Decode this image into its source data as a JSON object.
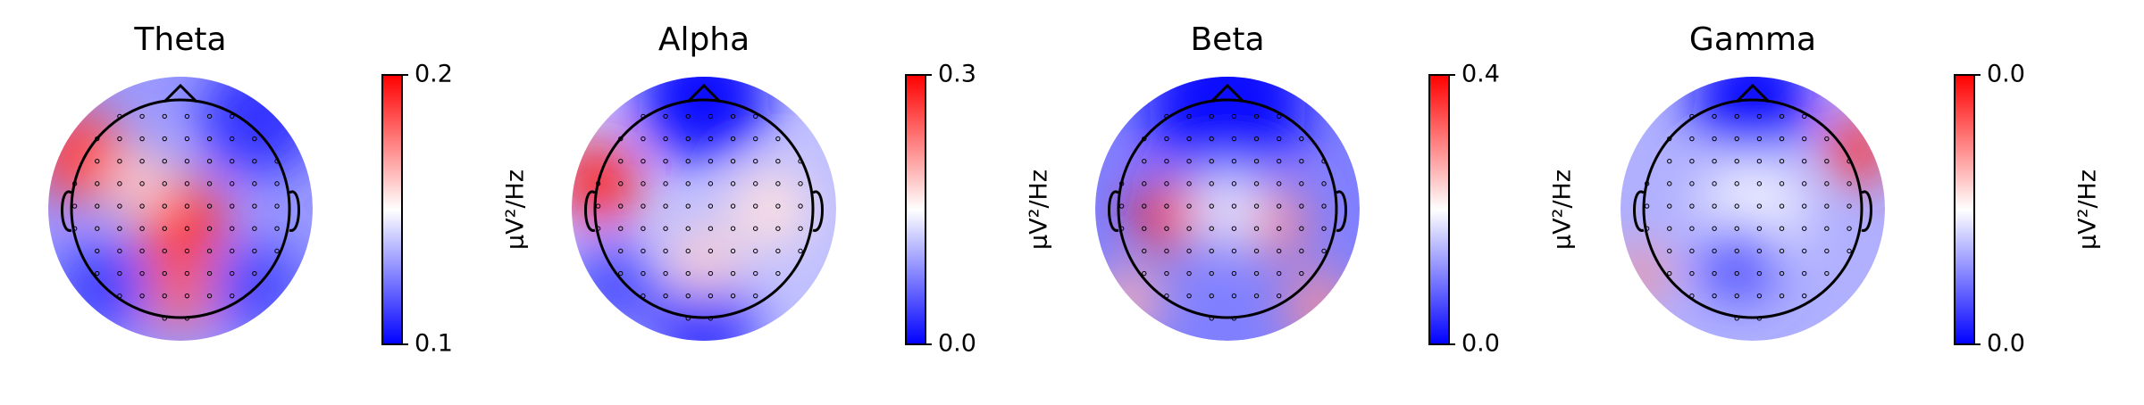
{
  "chart_data": [
    {
      "type": "topomap",
      "title": "Theta",
      "colorbar_label": "µV²/Hz",
      "colormap": [
        "#0000ff",
        "#ffffff",
        "#ff0000"
      ],
      "ylim": [
        0.1,
        0.2
      ],
      "yticks": [
        0.1,
        0.2
      ]
    },
    {
      "type": "topomap",
      "title": "Alpha",
      "colorbar_label": "µV²/Hz",
      "colormap": [
        "#0000ff",
        "#ffffff",
        "#ff0000"
      ],
      "ylim": [
        0,
        0.3
      ],
      "yticks": [
        {
          "value": 0,
          "label": "0.0"
        },
        0.3
      ]
    },
    {
      "type": "topomap",
      "title": "Beta",
      "colorbar_label": "µV²/Hz",
      "colormap": [
        "#0000ff",
        "#ffffff",
        "#ff0000"
      ],
      "ylim": [
        0,
        0.4
      ],
      "yticks": [
        {
          "value": 0,
          "label": "0.0"
        },
        0.4
      ]
    },
    {
      "type": "topomap",
      "title": "Gamma",
      "colorbar_label": "µV²/Hz",
      "colormap": [
        "#0000ff",
        "#ffffff",
        "#ff0000"
      ],
      "ylim": [
        0.01,
        0.04
      ],
      "yticks": [
        {
          "value": 0.01,
          "label": "0.0"
        },
        {
          "value": 0.04,
          "label": "0.0"
        }
      ]
    }
  ]
}
